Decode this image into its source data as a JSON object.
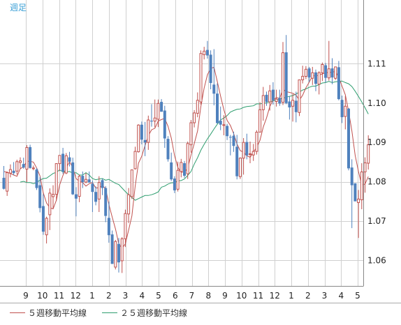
{
  "chart_data": {
    "type": "candlestick",
    "period_label": "週足",
    "y_ticks": [
      1.06,
      1.07,
      1.08,
      1.09,
      1.1,
      1.11
    ],
    "y_tick_labels": [
      "1.06",
      "1.07",
      "1.08",
      "1.09",
      "1.10",
      "1.11"
    ],
    "ylim": [
      1.0535,
      1.1262
    ],
    "x_tick_labels": [
      "9",
      "10",
      "11",
      "12",
      "1",
      "2",
      "3",
      "4",
      "5",
      "6",
      "7",
      "8",
      "9",
      "10",
      "11",
      "12",
      "1",
      "2",
      "3",
      "4",
      "5"
    ],
    "grid": true,
    "colors": {
      "up": "#c0504d",
      "down": "#4f81bd",
      "ma5": "#c0504d",
      "ma25": "#2e9e6f",
      "grid": "#d0d0d0",
      "axis_text": "#222222",
      "period_text": "#3a9fd6"
    },
    "legend": [
      {
        "label": "５週移動平均線",
        "color": "#c0504d"
      },
      {
        "label": "２５週移動平均線",
        "color": "#2e9e6f"
      }
    ],
    "candles": [
      [
        1.081,
        1.084,
        1.078,
        1.0782
      ],
      [
        1.0776,
        1.0826,
        1.0764,
        1.0823
      ],
      [
        1.0822,
        1.0844,
        1.0811,
        1.0831
      ],
      [
        1.0828,
        1.085,
        1.0817,
        1.0822
      ],
      [
        1.0827,
        1.0856,
        1.0818,
        1.0851
      ],
      [
        1.0849,
        1.0862,
        1.0833,
        1.0853
      ],
      [
        1.0845,
        1.0861,
        1.0833,
        1.0836
      ],
      [
        1.0832,
        1.0893,
        1.0799,
        1.0887
      ],
      [
        1.0888,
        1.0894,
        1.0833,
        1.0835
      ],
      [
        1.0833,
        1.0841,
        1.0829,
        1.0835
      ],
      [
        1.0831,
        1.0835,
        1.0779,
        1.0784
      ],
      [
        1.0791,
        1.0812,
        1.0722,
        1.0733
      ],
      [
        1.0738,
        1.0768,
        1.0665,
        1.0673
      ],
      [
        1.0665,
        1.0711,
        1.0643,
        1.0707
      ],
      [
        1.0716,
        1.0783,
        1.0677,
        1.0771
      ],
      [
        1.0762,
        1.0791,
        1.0731,
        1.0768
      ],
      [
        1.0768,
        1.0847,
        1.0752,
        1.0846
      ],
      [
        1.0846,
        1.0867,
        1.0827,
        1.0867
      ],
      [
        1.0871,
        1.0886,
        1.082,
        1.0826
      ],
      [
        1.0822,
        1.0873,
        1.0819,
        1.0866
      ],
      [
        1.0862,
        1.0876,
        1.0839,
        1.0851
      ],
      [
        1.0849,
        1.0861,
        1.0766,
        1.0768
      ],
      [
        1.0768,
        1.0786,
        1.0712,
        1.0757
      ],
      [
        1.0763,
        1.0818,
        1.0748,
        1.0814
      ],
      [
        1.0815,
        1.0826,
        1.0784,
        1.0799
      ],
      [
        1.0799,
        1.0822,
        1.0796,
        1.0806
      ],
      [
        1.0806,
        1.0826,
        1.0798,
        1.0798
      ],
      [
        1.0795,
        1.0803,
        1.0723,
        1.0774
      ],
      [
        1.0774,
        1.0788,
        1.074,
        1.0749
      ],
      [
        1.0756,
        1.0814,
        1.0723,
        1.0798
      ],
      [
        1.0804,
        1.0808,
        1.0766,
        1.0784
      ],
      [
        1.0784,
        1.0789,
        1.0697,
        1.0713
      ],
      [
        1.0708,
        1.0749,
        1.0645,
        1.0664
      ],
      [
        1.0666,
        1.0676,
        1.0591,
        1.0591
      ],
      [
        1.0583,
        1.0652,
        1.0577,
        1.0648
      ],
      [
        1.0642,
        1.0657,
        1.0569,
        1.0595
      ],
      [
        1.0599,
        1.0659,
        1.0568,
        1.0655
      ],
      [
        1.0655,
        1.0729,
        1.0634,
        1.0719
      ],
      [
        1.0718,
        1.0784,
        1.0695,
        1.0767
      ],
      [
        1.0762,
        1.0831,
        1.0756,
        1.083
      ],
      [
        1.0833,
        1.0889,
        1.0831,
        1.0877
      ],
      [
        1.0876,
        1.0946,
        1.0874,
        1.0944
      ],
      [
        1.0945,
        1.0953,
        1.0895,
        1.0907
      ],
      [
        1.0906,
        1.0952,
        1.0865,
        1.09
      ],
      [
        1.09,
        1.0968,
        1.0881,
        1.0957
      ],
      [
        1.0955,
        1.0997,
        1.094,
        1.0953
      ],
      [
        1.0954,
        1.1009,
        1.0938,
        1.0962
      ],
      [
        1.0959,
        1.1009,
        1.0939,
        1.0999
      ],
      [
        1.1003,
        1.101,
        1.0978,
        1.0978
      ],
      [
        1.0981,
        1.0993,
        1.0886,
        1.091
      ],
      [
        1.0909,
        1.0916,
        1.0851,
        1.0857
      ],
      [
        1.0849,
        1.0874,
        1.0802,
        1.0806
      ],
      [
        1.0808,
        1.0814,
        1.0771,
        1.0778
      ],
      [
        1.0781,
        1.0851,
        1.0775,
        1.0829
      ],
      [
        1.0826,
        1.0858,
        1.0811,
        1.0849
      ],
      [
        1.0847,
        1.0853,
        1.081,
        1.0815
      ],
      [
        1.082,
        1.0902,
        1.0807,
        1.0897
      ],
      [
        1.0894,
        1.0957,
        1.0874,
        1.095
      ],
      [
        1.095,
        1.0982,
        1.0938,
        1.0975
      ],
      [
        1.0974,
        1.1027,
        1.0964,
        1.1007
      ],
      [
        1.1003,
        1.1134,
        1.0996,
        1.1126
      ],
      [
        1.1123,
        1.1143,
        1.1111,
        1.1132
      ],
      [
        1.1135,
        1.1158,
        1.1113,
        1.1121
      ],
      [
        1.1123,
        1.1134,
        1.1035,
        1.1051
      ],
      [
        1.1047,
        1.1137,
        1.0994,
        1.1024
      ],
      [
        1.1024,
        1.105,
        1.0948,
        1.0949
      ],
      [
        1.0955,
        1.0991,
        1.0931,
        1.0945
      ],
      [
        1.0943,
        1.0969,
        1.0918,
        1.0945
      ],
      [
        1.0942,
        1.0947,
        1.0906,
        1.0916
      ],
      [
        1.0914,
        1.0919,
        1.0867,
        1.0913
      ],
      [
        1.0917,
        1.0927,
        1.0876,
        1.0891
      ],
      [
        1.0889,
        1.0919,
        1.0806,
        1.0814
      ],
      [
        1.0813,
        1.0862,
        1.0807,
        1.086
      ],
      [
        1.086,
        1.0911,
        1.0818,
        1.09
      ],
      [
        1.0901,
        1.0922,
        1.0857,
        1.0867
      ],
      [
        1.087,
        1.0902,
        1.0847,
        1.0871
      ],
      [
        1.0868,
        1.0896,
        1.0853,
        1.0877
      ],
      [
        1.0877,
        1.0931,
        1.0869,
        1.0926
      ],
      [
        1.0926,
        1.1002,
        1.0926,
        1.0983
      ],
      [
        1.0983,
        1.1041,
        1.0955,
        1.1019
      ],
      [
        1.1021,
        1.1029,
        1.0993,
        1.1003
      ],
      [
        1.1003,
        1.1046,
        1.0981,
        1.1031
      ],
      [
        1.1034,
        1.1053,
        1.0996,
        1.1007
      ],
      [
        1.1004,
        1.1034,
        1.0991,
        1.101
      ],
      [
        1.1013,
        1.1034,
        1.0993,
        1.0999
      ],
      [
        1.1002,
        1.1155,
        1.0995,
        1.1128
      ],
      [
        1.1129,
        1.1173,
        1.0997,
        1.1
      ],
      [
        1.1004,
        1.1018,
        1.0958,
        1.0989
      ],
      [
        1.0992,
        1.1023,
        1.0953,
        1.1007
      ],
      [
        1.1006,
        1.1029,
        1.0951,
        1.0977
      ],
      [
        1.0976,
        1.1057,
        1.0967,
        1.1059
      ],
      [
        1.1059,
        1.1095,
        1.105,
        1.1068
      ],
      [
        1.1068,
        1.1094,
        1.1061,
        1.1086
      ],
      [
        1.1088,
        1.1092,
        1.1054,
        1.1065
      ],
      [
        1.1063,
        1.1092,
        1.1046,
        1.1077
      ],
      [
        1.1078,
        1.1085,
        1.103,
        1.1049
      ],
      [
        1.1048,
        1.1081,
        1.1022,
        1.1077
      ],
      [
        1.1077,
        1.1103,
        1.1056,
        1.1098
      ],
      [
        1.1096,
        1.1102,
        1.1052,
        1.1064
      ],
      [
        1.1064,
        1.1158,
        1.1057,
        1.1087
      ],
      [
        1.1088,
        1.1114,
        1.1048,
        1.1065
      ],
      [
        1.1063,
        1.1092,
        1.1059,
        1.1092
      ],
      [
        1.1091,
        1.1107,
        1.1007,
        1.101
      ],
      [
        1.1008,
        1.1019,
        1.0949,
        1.0964
      ],
      [
        1.0966,
        1.1018,
        1.0933,
        1.0992
      ],
      [
        1.0986,
        1.0987,
        1.0829,
        1.0834
      ],
      [
        1.0836,
        1.0857,
        1.0682,
        1.0791
      ],
      [
        1.0796,
        1.0796,
        1.0751,
        1.075
      ],
      [
        1.0747,
        1.0779,
        1.0657,
        1.0756
      ],
      [
        1.0754,
        1.0847,
        1.073,
        1.0825
      ],
      [
        1.0825,
        1.0862,
        1.0772,
        1.0848
      ],
      [
        1.0847,
        1.0918,
        1.0831,
        1.0894
      ]
    ],
    "ma5": [
      1.0826,
      1.0824,
      1.0821,
      1.0817,
      1.0814,
      1.0833,
      1.0838,
      1.0852,
      1.0852,
      1.085,
      1.0835,
      1.0815,
      1.0772,
      1.0746,
      1.0734,
      1.0731,
      1.0753,
      1.0792,
      1.0816,
      1.0835,
      1.0851,
      1.0836,
      1.0808,
      1.0801,
      1.0798,
      1.0789,
      1.0795,
      1.0798,
      1.0784,
      1.0785,
      1.079,
      1.0783,
      1.0742,
      1.071,
      1.068,
      1.0642,
      1.0631,
      1.0642,
      1.0677,
      1.0713,
      1.0789,
      1.0847,
      1.0865,
      1.0892,
      1.0917,
      1.0932,
      1.0936,
      1.0954,
      1.0958,
      1.0961,
      1.0941,
      1.0911,
      1.0866,
      1.0836,
      1.0824,
      1.0825,
      1.0834,
      1.0868,
      1.0897,
      1.0929,
      1.0991,
      1.1038,
      1.1072,
      1.1088,
      1.1091,
      1.1055,
      1.1018,
      1.0983,
      1.0956,
      1.0943,
      1.0922,
      1.0896,
      1.0879,
      1.0875,
      1.0866,
      1.0862,
      1.0875,
      1.0888,
      1.0905,
      1.0939,
      1.0962,
      1.0991,
      1.1008,
      1.1014,
      1.1012,
      1.1035,
      1.1029,
      1.1027,
      1.1025,
      1.102,
      1.1007,
      1.102,
      1.1039,
      1.1053,
      1.1069,
      1.1069,
      1.1071,
      1.1074,
      1.1077,
      1.1078,
      1.1078,
      1.1081,
      1.1065,
      1.1043,
      1.1021,
      1.0979,
      1.0929,
      1.0867,
      1.0826,
      1.0791,
      1.0794,
      1.0813
    ],
    "ma25": [
      1.0799,
      1.0801,
      1.0798,
      1.0798,
      1.0795,
      1.0798,
      1.0804,
      1.0808,
      1.0809,
      1.0815,
      1.0821,
      1.0824,
      1.083,
      1.0825,
      1.0825,
      1.0826,
      1.0822,
      1.0823,
      1.0817,
      1.0817,
      1.0823,
      1.0817,
      1.0808,
      1.0805,
      1.0807,
      1.0808,
      1.0804,
      1.0806,
      1.0801,
      1.0796,
      1.0793,
      1.0784,
      1.0775,
      1.0767,
      1.076,
      1.0753,
      1.0757,
      1.0761,
      1.0765,
      1.0765,
      1.0767,
      1.077,
      1.0774,
      1.0786,
      1.0789,
      1.0794,
      1.0797,
      1.0798,
      1.0802,
      1.0803,
      1.0807,
      1.0816,
      1.0826,
      1.0845,
      1.0861,
      1.088,
      1.0895,
      1.0909,
      1.0921,
      1.0934,
      1.0946,
      1.0957,
      1.0962,
      1.0968,
      1.0977,
      1.0981,
      1.0984,
      1.0985,
      1.0989,
      1.0991,
      1.0992,
      1.0993,
      1.0998,
      1.0998,
      1.0999,
      1.1001,
      1.1003,
      1.1006,
      1.1007,
      1.1011,
      1.1012,
      1.1015,
      1.1017,
      1.1019,
      1.1023,
      1.1028,
      1.1033,
      1.1036,
      1.104,
      1.1043,
      1.1043,
      1.1047,
      1.1051,
      1.1052,
      1.1055,
      1.1052,
      1.1054,
      1.1055,
      1.1056,
      1.1052,
      1.1049,
      1.1042,
      1.103,
      1.1017,
      1.1003,
      1.0988,
      1.0972
    ]
  }
}
